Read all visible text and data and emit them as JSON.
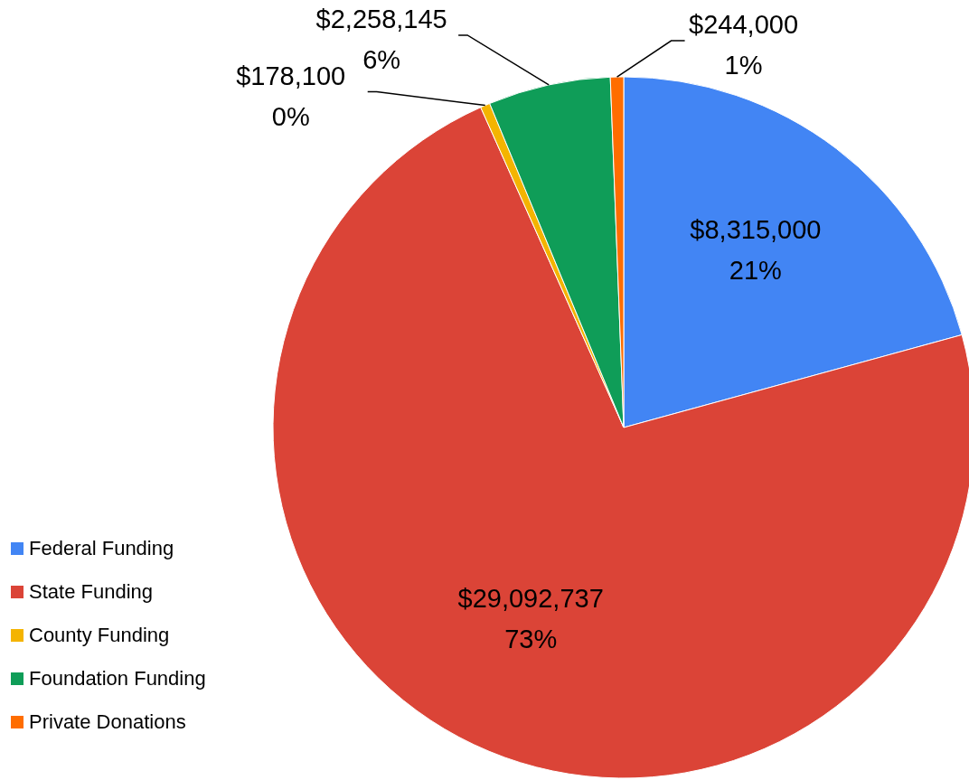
{
  "chart_data": {
    "type": "pie",
    "categories": [
      "Federal Funding",
      "State Funding",
      "County Funding",
      "Foundation Funding",
      "Private Donations"
    ],
    "values": [
      8315000,
      29092737,
      178100,
      2258145,
      244000
    ],
    "colors": [
      "#4285f4",
      "#db4437",
      "#f4b400",
      "#0f9d58",
      "#ff6d00"
    ],
    "value_labels": [
      "$8,315,000\n21%",
      "$29,092,737\n73%",
      "$178,100\n0%",
      "$2,258,145\n6%",
      "$244,000\n1%"
    ],
    "legend": "bottom left"
  }
}
